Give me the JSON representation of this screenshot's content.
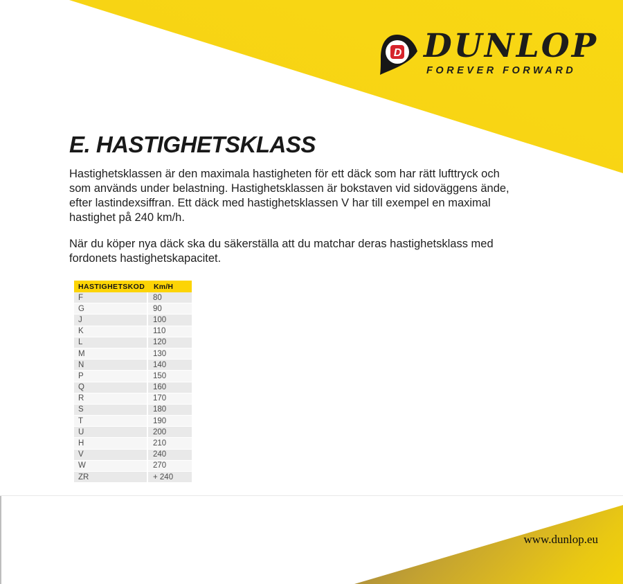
{
  "brand": {
    "logo_text": "DUNLOP",
    "tagline": "FOREVER FORWARD",
    "emblem_letter": "D",
    "colors": {
      "brand_yellow": "#F7D414",
      "brand_red": "#D6232B",
      "brand_black": "#1D1D1B",
      "table_header_yellow": "#FCD405",
      "table_row_shade": "#E9E9E9"
    }
  },
  "content": {
    "heading": "E. HASTIGHETSKLASS",
    "paragraph1": "Hastighetsklassen är den maximala hastigheten för ett däck som har rätt lufttryck och\nsom används under belastning. Hastighetsklassen är bokstaven vid sidoväggens ände,\nefter lastindexsiffran. Ett däck med hastighetsklassen V har till exempel en maximal\nhastighet på 240 km/h.",
    "paragraph2": "När du köper nya däck ska du säkerställa att du matchar deras hastighetsklass med\nfordonets hastighetskapacitet."
  },
  "table": {
    "headers": [
      "HASTIGHETSKOD",
      "Km/H"
    ],
    "rows": [
      [
        "F",
        "80"
      ],
      [
        "G",
        "90"
      ],
      [
        "J",
        "100"
      ],
      [
        "K",
        "110"
      ],
      [
        "L",
        "120"
      ],
      [
        "M",
        "130"
      ],
      [
        "N",
        "140"
      ],
      [
        "P",
        "150"
      ],
      [
        "Q",
        "160"
      ],
      [
        "R",
        "170"
      ],
      [
        "S",
        "180"
      ],
      [
        "T",
        "190"
      ],
      [
        "U",
        "200"
      ],
      [
        "H",
        "210"
      ],
      [
        "V",
        "240"
      ],
      [
        "W",
        "270"
      ],
      [
        "ZR",
        "+ 240"
      ]
    ]
  },
  "footer": {
    "url": "www.dunlop.eu"
  }
}
